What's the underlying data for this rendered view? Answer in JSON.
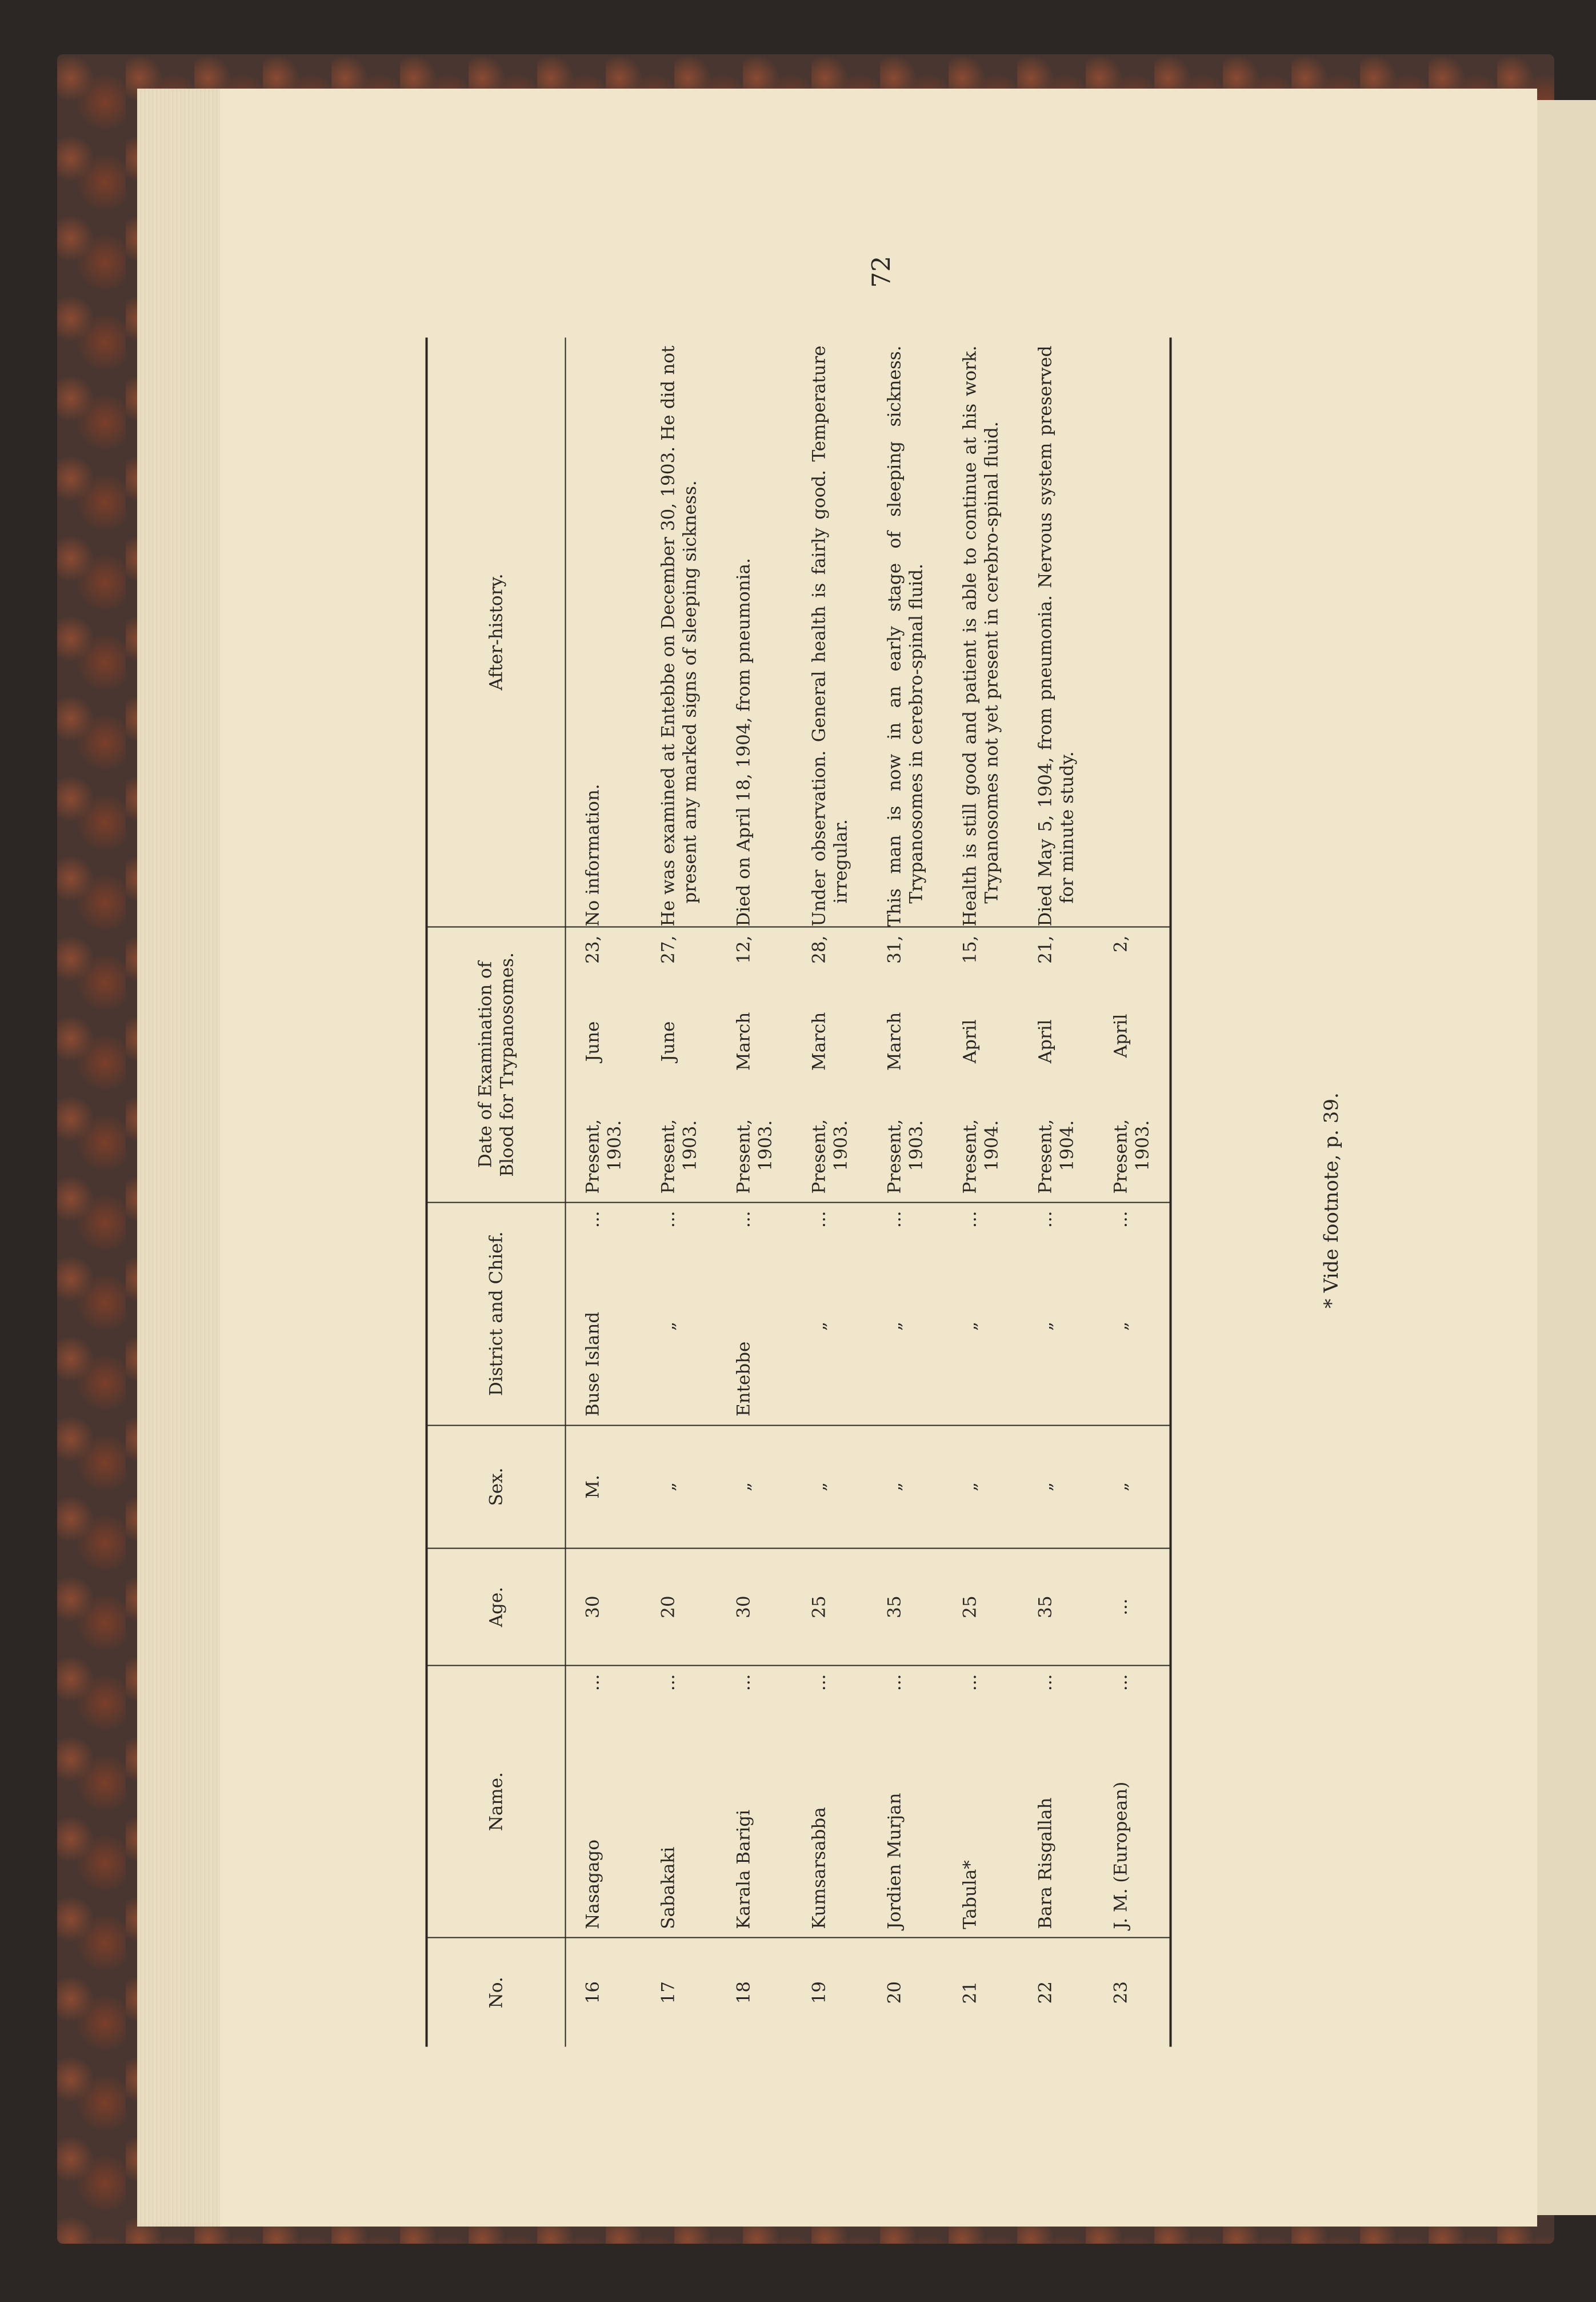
{
  "page_number": "72",
  "footnote": "* Vide footnote, p. 39.",
  "table": {
    "headers": [
      "No.",
      "Name.",
      "Age.",
      "Sex.",
      "District and Chief.",
      "Date of Examination of Blood for Trypanosomes.",
      "After-history."
    ],
    "rows": [
      {
        "no": "16",
        "name": "Nasagago",
        "name_lead": "...",
        "age": "30",
        "sex": "M.",
        "district": "Buse Island",
        "district_lead": "...",
        "date_a": "Present,",
        "date_b": "June",
        "date_c": "23,",
        "date_year": "1903.",
        "history": "No information."
      },
      {
        "no": "17",
        "name": "Sabakaki",
        "name_lead": "...",
        "age": "20",
        "sex": "„",
        "district": "„",
        "district_lead": "...",
        "date_a": "Present,",
        "date_b": "June",
        "date_c": "27,",
        "date_year": "1903.",
        "history": "He was examined at Entebbe on December 30, 1903. He did not present any marked signs of sleeping sickness."
      },
      {
        "no": "18",
        "name": "Karala Barigi",
        "name_lead": "...",
        "age": "30",
        "sex": "„",
        "district": "Entebbe",
        "district_lead": "...",
        "date_a": "Present,",
        "date_b": "March",
        "date_c": "12,",
        "date_year": "1903.",
        "history": "Died on April 18, 1904, from pneumonia."
      },
      {
        "no": "19",
        "name": "Kumsarsabba",
        "name_lead": "...",
        "age": "25",
        "sex": "„",
        "district": "„",
        "district_lead": "...",
        "date_a": "Present,",
        "date_b": "March",
        "date_c": "28,",
        "date_year": "1903.",
        "history": "Under observation. General health is fairly good. Temperature irregular."
      },
      {
        "no": "20",
        "name": "Jordien Murjan",
        "name_lead": "...",
        "age": "35",
        "sex": "„",
        "district": "„",
        "district_lead": "...",
        "date_a": "Present,",
        "date_b": "March",
        "date_c": "31,",
        "date_year": "1903.",
        "history": "This man is now in an early stage of sleeping sickness. Trypanosomes in cerebro-spinal fluid."
      },
      {
        "no": "21",
        "name": "Tabula*",
        "name_lead": "...",
        "age": "25",
        "sex": "„",
        "district": "„",
        "district_lead": "...",
        "date_a": "Present,",
        "date_b": "April",
        "date_c": "15,",
        "date_year": "1904.",
        "history": "Health is still good and patient is able to continue at his work. Trypanosomes not yet present in cerebro-spinal fluid."
      },
      {
        "no": "22",
        "name": "Bara Risgallah",
        "name_lead": "...",
        "age": "35",
        "sex": "„",
        "district": "„",
        "district_lead": "...",
        "date_a": "Present,",
        "date_b": "April",
        "date_c": "21,",
        "date_year": "1904.",
        "history": "Died May 5, 1904, from pneumonia. Nervous system preserved for minute study."
      },
      {
        "no": "23",
        "name": "J. M. (European)",
        "name_lead": "...",
        "age": "...",
        "sex": "„",
        "district": "„",
        "district_lead": "...",
        "date_a": "Present,",
        "date_b": "April",
        "date_c": "2,",
        "date_year": "1903.",
        "history": ""
      }
    ]
  }
}
